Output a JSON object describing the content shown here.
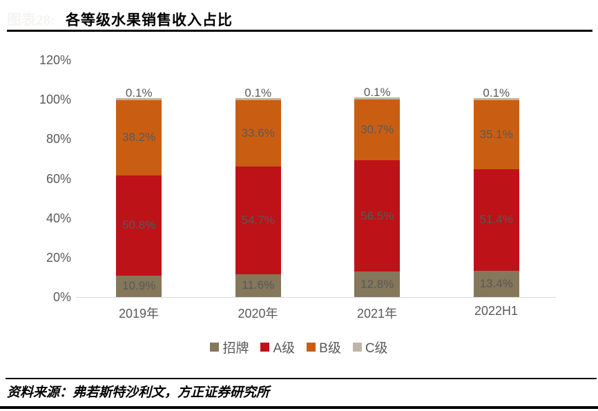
{
  "watermark": "图表28:",
  "title": "各等级水果销售收入占比",
  "source": "资料来源：弗若斯特沙利文，方正证券研究所",
  "chart_data": {
    "type": "bar",
    "stacked": true,
    "title": "各等级水果销售收入占比",
    "categories": [
      "2019年",
      "2020年",
      "2021年",
      "2022H1"
    ],
    "series": [
      {
        "name": "招牌",
        "color": "#84775A",
        "values": [
          10.9,
          11.6,
          12.8,
          13.4
        ]
      },
      {
        "name": "A级",
        "color": "#BD1218",
        "values": [
          50.8,
          54.7,
          56.5,
          51.4
        ]
      },
      {
        "name": "B级",
        "color": "#C95E13",
        "values": [
          38.2,
          33.6,
          30.7,
          35.1
        ]
      },
      {
        "name": "C级",
        "color": "#BDB5A6",
        "values": [
          0.1,
          0.1,
          0.1,
          0.1
        ]
      }
    ],
    "y_ticks": [
      "0%",
      "20%",
      "40%",
      "60%",
      "80%",
      "100%",
      "120%"
    ],
    "ylim": [
      0,
      120
    ],
    "xlabel": "",
    "ylabel": "",
    "grid": false,
    "legend_position": "bottom",
    "data_label_color": "#595959",
    "axis_line_color": "#D9D9D9"
  }
}
